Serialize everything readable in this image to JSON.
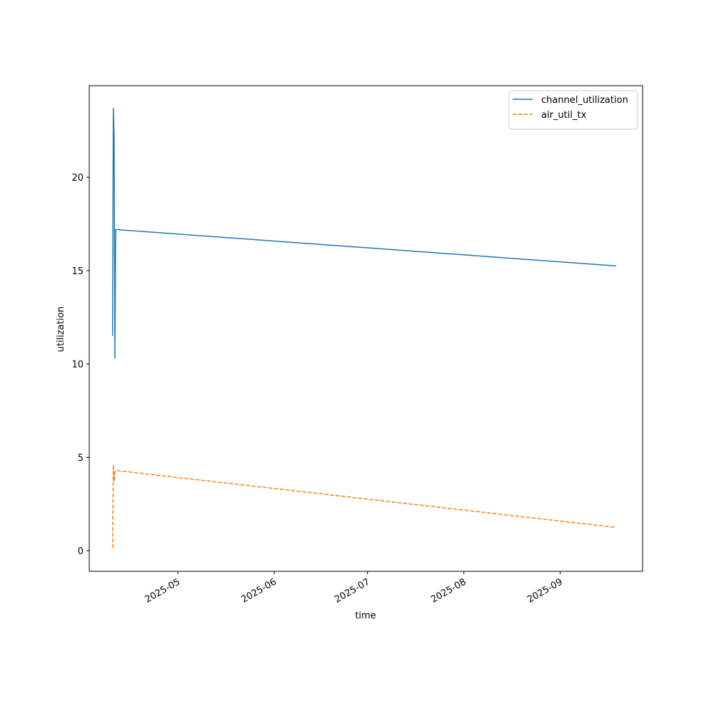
{
  "chart_data": {
    "type": "line",
    "x_label": "time",
    "y_label": "utilization",
    "x": [
      "2025-04-10T00:00",
      "2025-04-10T06:00",
      "2025-04-10T12:00",
      "2025-04-10T18:00",
      "2025-04-11T00:00",
      "2025-09-19T00:00"
    ],
    "series": [
      {
        "name": "channel_utilization",
        "color": "#1f77b4",
        "linestyle": "solid",
        "values": [
          11.5,
          23.7,
          22.2,
          10.3,
          17.2,
          15.25
        ]
      },
      {
        "name": "air_util_tx",
        "color": "#ff7f0e",
        "linestyle": "dashed",
        "values": [
          0.15,
          4.6,
          3.7,
          4.2,
          4.3,
          1.25
        ]
      }
    ],
    "xlim": [
      "2025-04-02T12:00",
      "2025-09-27T12:00"
    ],
    "xticks": [
      "2025-05",
      "2025-06",
      "2025-07",
      "2025-08",
      "2025-09"
    ],
    "ylim": [
      -1.1,
      24.9
    ],
    "yticks": [
      0,
      5,
      10,
      15,
      20
    ],
    "grid": false,
    "legend": "upper right"
  }
}
